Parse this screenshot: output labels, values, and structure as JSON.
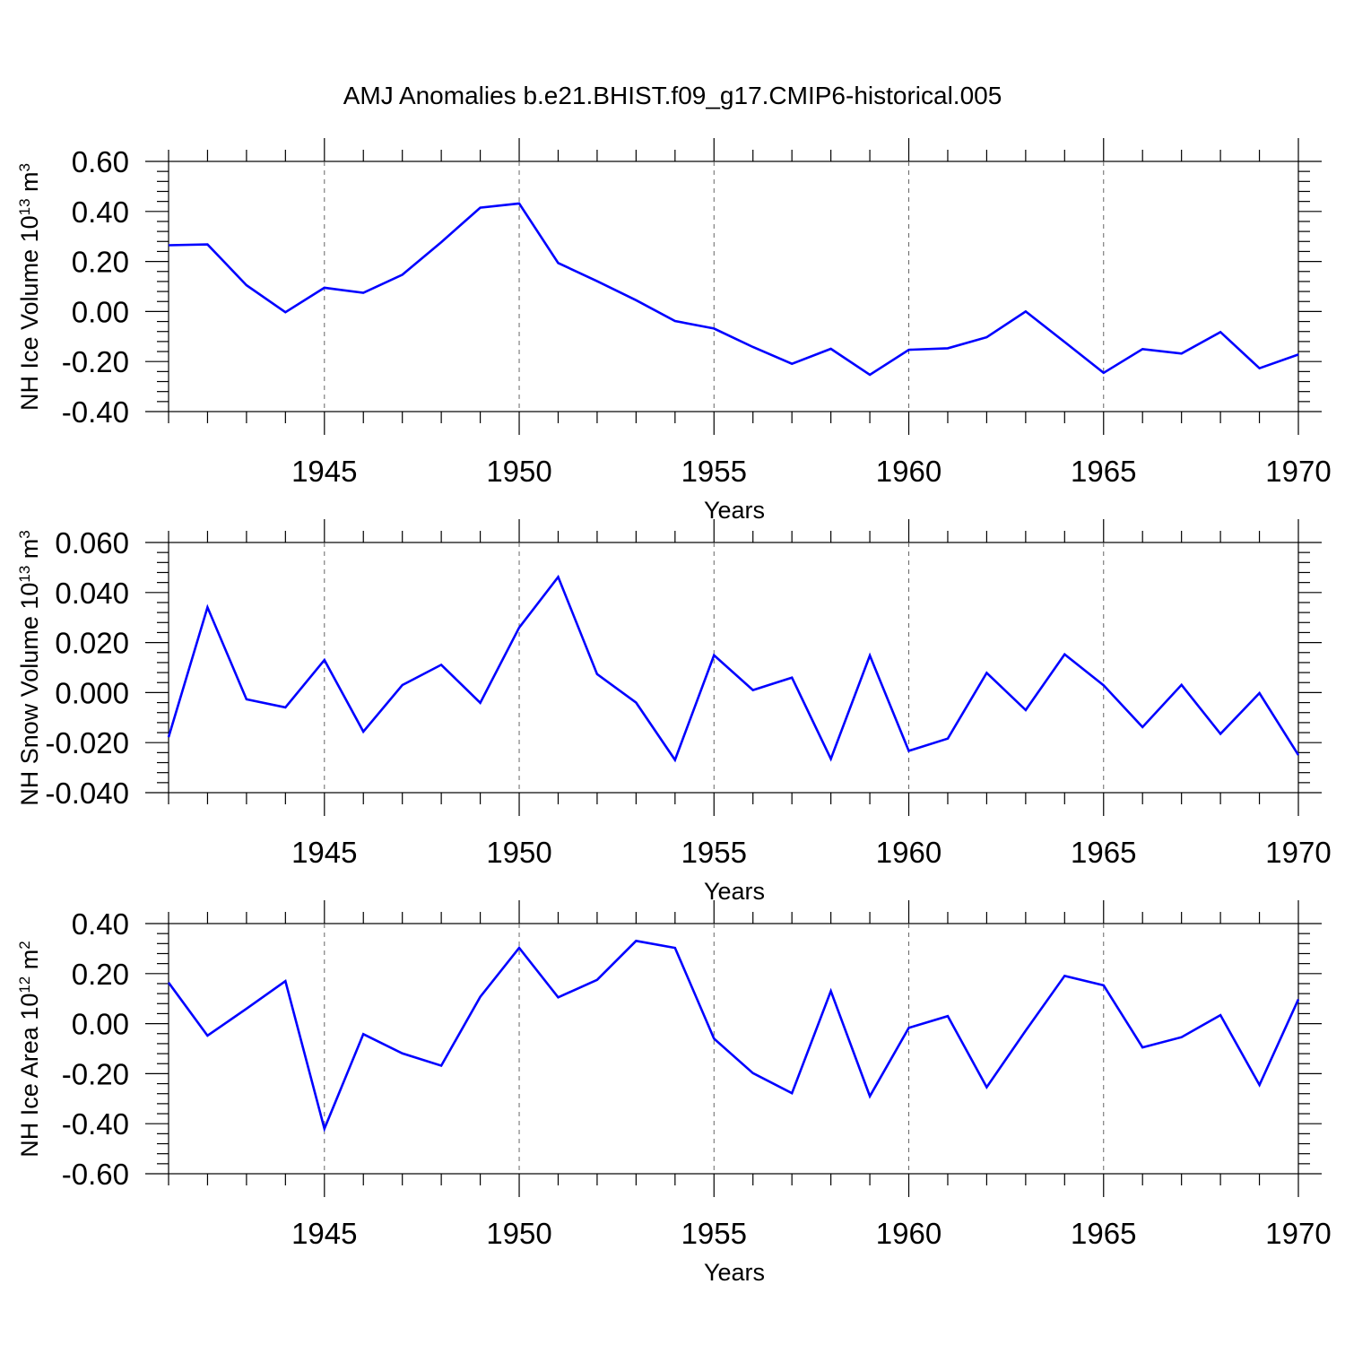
{
  "title": "AMJ Anomalies b.e21.BHIST.f09_g17.CMIP6-historical.005",
  "chart_data": [
    {
      "type": "line",
      "name": "ice-volume",
      "ylabel_prefix": "NH Ice Volume 10",
      "ylabel_exp": "13",
      "ylabel_unit": " m",
      "ylabel_unit_exp": "3",
      "xlabel": "Years",
      "xlim": [
        1941,
        1970
      ],
      "ylim": [
        -0.4,
        0.6
      ],
      "yticks": [
        "0.60",
        "0.40",
        "0.20",
        "0.00",
        "-0.20",
        "-0.40"
      ],
      "ytick_values": [
        0.6,
        0.4,
        0.2,
        0.0,
        -0.2,
        -0.4
      ],
      "xticks": [
        "1945",
        "1950",
        "1955",
        "1960",
        "1965",
        "1970"
      ],
      "xtick_values": [
        1945,
        1950,
        1955,
        1960,
        1965,
        1970
      ],
      "line_color": "#0000ff",
      "x": [
        1941,
        1942,
        1943,
        1944,
        1945,
        1946,
        1947,
        1948,
        1949,
        1950,
        1951,
        1952,
        1953,
        1954,
        1955,
        1956,
        1957,
        1958,
        1959,
        1960,
        1961,
        1962,
        1963,
        1964,
        1965,
        1966,
        1967,
        1968,
        1969,
        1970
      ],
      "values": [
        0.265,
        0.268,
        0.105,
        -0.003,
        0.095,
        0.075,
        0.147,
        0.277,
        0.415,
        0.432,
        0.194,
        0.121,
        0.045,
        -0.038,
        -0.068,
        -0.142,
        -0.209,
        -0.149,
        -0.253,
        -0.153,
        -0.147,
        -0.103,
        0.0,
        -0.122,
        -0.245,
        -0.15,
        -0.168,
        -0.082,
        -0.227,
        -0.172
      ]
    },
    {
      "type": "line",
      "name": "snow-volume",
      "ylabel_prefix": "NH Snow Volume 10",
      "ylabel_exp": "13",
      "ylabel_unit": " m",
      "ylabel_unit_exp": "3",
      "xlabel": "Years",
      "xlim": [
        1941,
        1970
      ],
      "ylim": [
        -0.04,
        0.06
      ],
      "yticks": [
        "0.060",
        "0.040",
        "0.020",
        "0.000",
        "-0.020",
        "-0.040"
      ],
      "ytick_values": [
        0.06,
        0.04,
        0.02,
        0.0,
        -0.02,
        -0.04
      ],
      "xticks": [
        "1945",
        "1950",
        "1955",
        "1960",
        "1965",
        "1970"
      ],
      "xtick_values": [
        1945,
        1950,
        1955,
        1960,
        1965,
        1970
      ],
      "line_color": "#0000ff",
      "x": [
        1941,
        1942,
        1943,
        1944,
        1945,
        1946,
        1947,
        1948,
        1949,
        1950,
        1951,
        1952,
        1953,
        1954,
        1955,
        1956,
        1957,
        1958,
        1959,
        1960,
        1961,
        1962,
        1963,
        1964,
        1965,
        1966,
        1967,
        1968,
        1969,
        1970
      ],
      "values": [
        -0.0178,
        0.0341,
        -0.0027,
        -0.0059,
        0.013,
        -0.0156,
        0.003,
        0.0111,
        -0.0041,
        0.026,
        0.0462,
        0.0074,
        -0.004,
        -0.0269,
        0.0149,
        0.001,
        0.006,
        -0.0265,
        0.0148,
        -0.0233,
        -0.0184,
        0.0079,
        -0.007,
        0.0153,
        0.0029,
        -0.0138,
        0.0031,
        -0.0165,
        -0.0002,
        -0.025
      ]
    },
    {
      "type": "line",
      "name": "ice-area",
      "ylabel_prefix": "NH Ice Area 10",
      "ylabel_exp": "12",
      "ylabel_unit": " m",
      "ylabel_unit_exp": "2",
      "xlabel": "Years",
      "xlim": [
        1941,
        1970
      ],
      "ylim": [
        -0.6,
        0.4
      ],
      "yticks": [
        "0.40",
        "0.20",
        "0.00",
        "-0.20",
        "-0.40",
        "-0.60"
      ],
      "ytick_values": [
        0.4,
        0.2,
        0.0,
        -0.2,
        -0.4,
        -0.6
      ],
      "xticks": [
        "1945",
        "1950",
        "1955",
        "1960",
        "1965",
        "1970"
      ],
      "xtick_values": [
        1945,
        1950,
        1955,
        1960,
        1965,
        1970
      ],
      "line_color": "#0000ff",
      "x": [
        1941,
        1942,
        1943,
        1944,
        1945,
        1946,
        1947,
        1948,
        1949,
        1950,
        1951,
        1952,
        1953,
        1954,
        1955,
        1956,
        1957,
        1958,
        1959,
        1960,
        1961,
        1962,
        1963,
        1964,
        1965,
        1966,
        1967,
        1968,
        1969,
        1970
      ],
      "values": [
        0.164,
        -0.048,
        0.06,
        0.17,
        -0.42,
        -0.042,
        -0.119,
        -0.168,
        0.107,
        0.303,
        0.105,
        0.175,
        0.331,
        0.303,
        -0.06,
        -0.198,
        -0.278,
        0.13,
        -0.29,
        -0.017,
        0.03,
        -0.254,
        -0.028,
        0.191,
        0.153,
        -0.095,
        -0.054,
        0.034,
        -0.245,
        0.097
      ]
    }
  ]
}
